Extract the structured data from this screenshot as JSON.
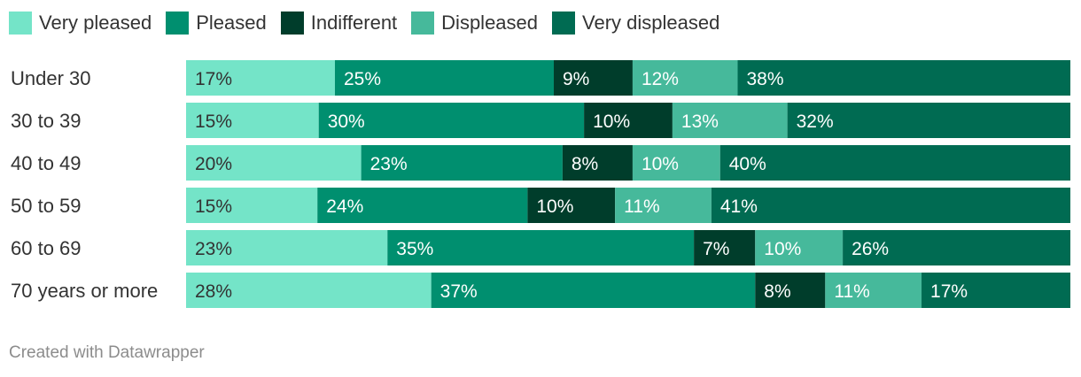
{
  "chart_data": {
    "type": "bar",
    "orientation": "horizontal",
    "stacked": true,
    "legend_position": "top",
    "categories": [
      "Under 30",
      "30 to 39",
      "40 to 49",
      "50 to 59",
      "60 to 69",
      "70 years or more"
    ],
    "series": [
      {
        "name": "Very pleased",
        "color": "#74e4c8",
        "label_color": "#333333",
        "values": [
          17,
          15,
          20,
          15,
          23,
          28
        ]
      },
      {
        "name": "Pleased",
        "color": "#008f6f",
        "label_color": "#ffffff",
        "values": [
          25,
          30,
          23,
          24,
          35,
          37
        ]
      },
      {
        "name": "Indifferent",
        "color": "#003d2b",
        "label_color": "#ffffff",
        "values": [
          9,
          10,
          8,
          10,
          7,
          8
        ]
      },
      {
        "name": "Displeased",
        "color": "#46b99b",
        "label_color": "#ffffff",
        "values": [
          12,
          13,
          10,
          11,
          10,
          11
        ]
      },
      {
        "name": "Very displeased",
        "color": "#006b52",
        "label_color": "#ffffff",
        "values": [
          38,
          32,
          40,
          41,
          26,
          17
        ]
      }
    ],
    "value_suffix": "%"
  },
  "footer": {
    "credit": "Created with Datawrapper"
  }
}
